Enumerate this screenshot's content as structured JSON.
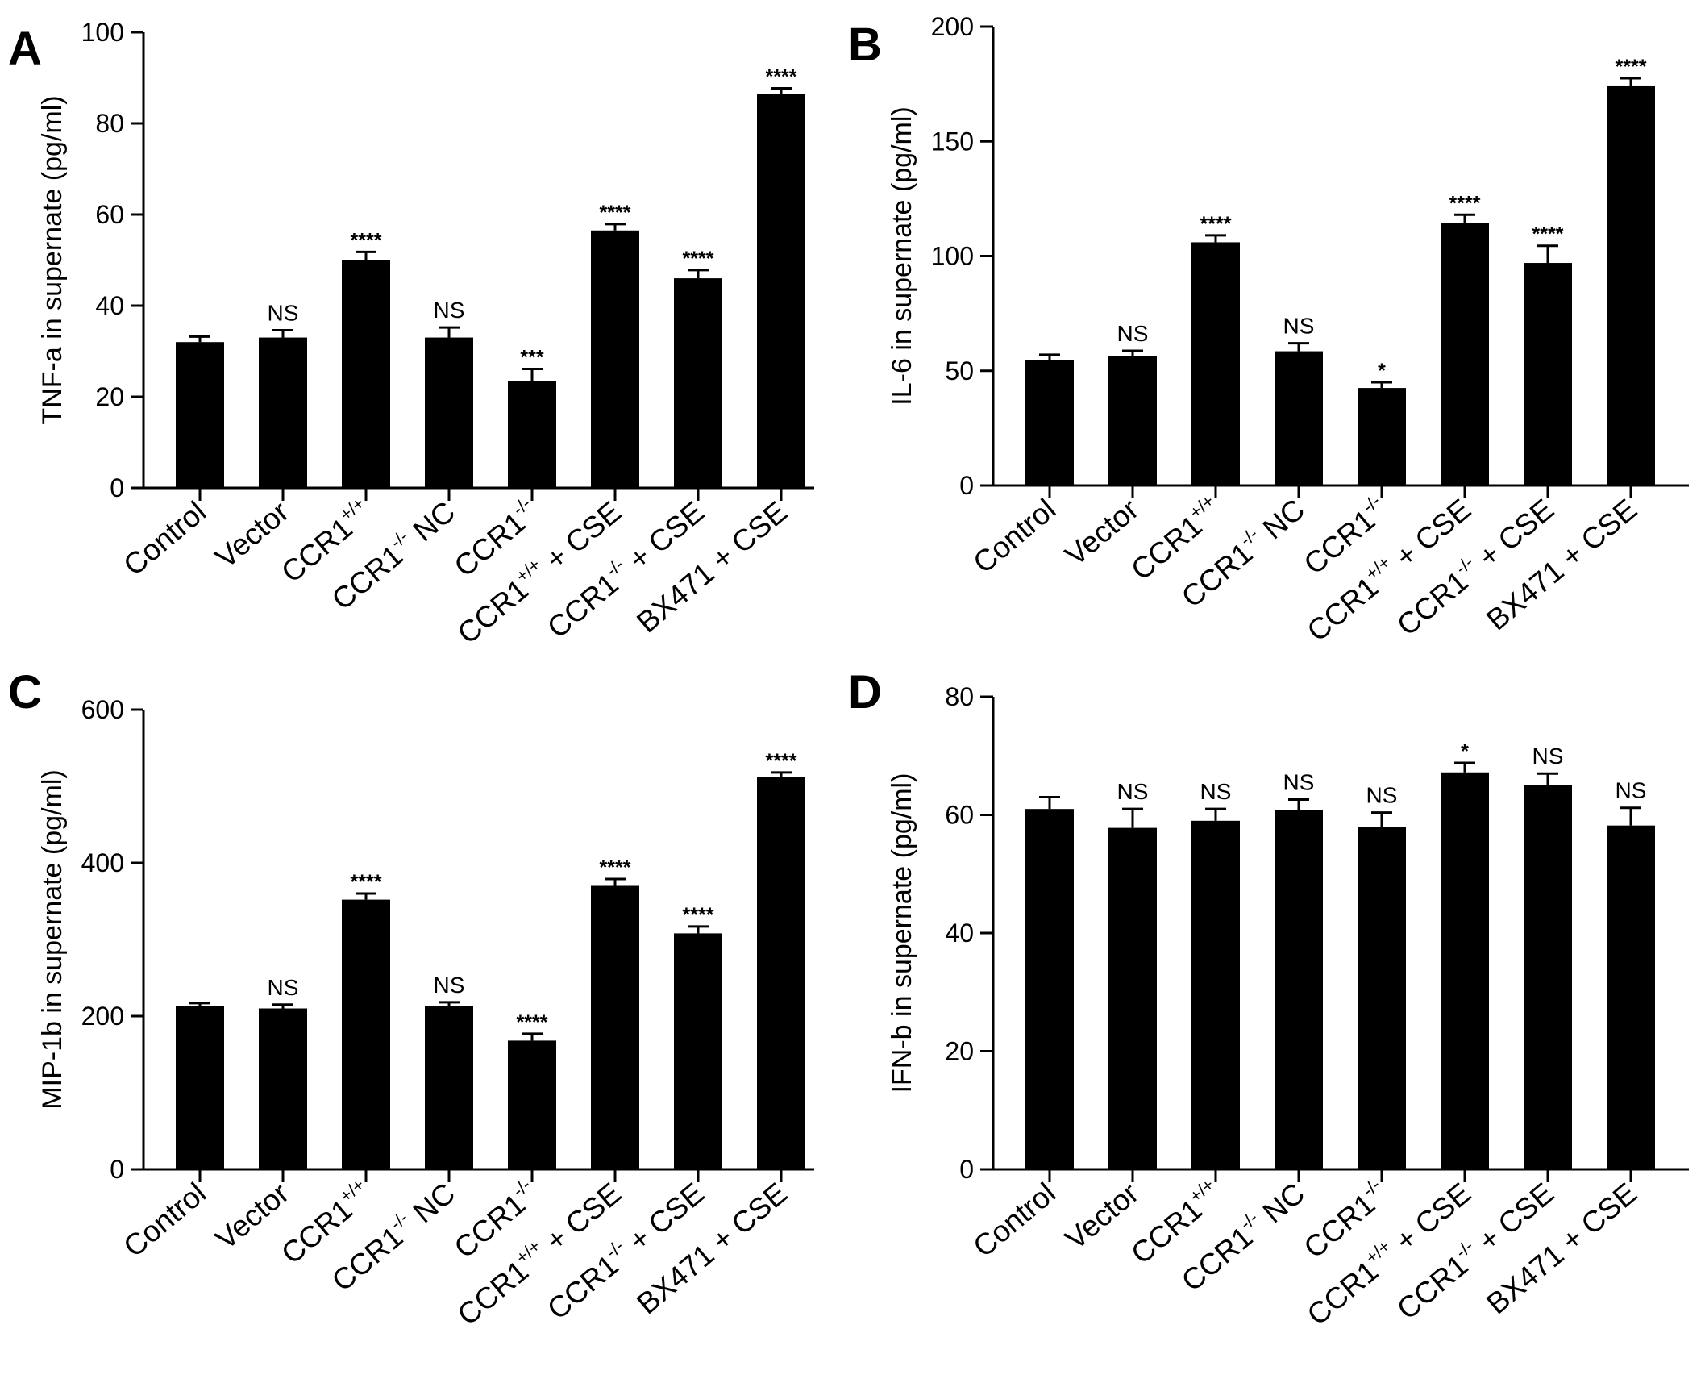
{
  "chart_data": [
    {
      "type": "bar",
      "panel": "A",
      "ylabel": "TNF-a in supernate (pg/ml)",
      "ylim": [
        0,
        100
      ],
      "yticks": [
        0,
        20,
        40,
        60,
        80,
        100
      ],
      "categories": [
        {
          "main": "Control",
          "sup": "",
          "tail": ""
        },
        {
          "main": "Vector",
          "sup": "",
          "tail": ""
        },
        {
          "main": "CCR1",
          "sup": "+/+",
          "tail": ""
        },
        {
          "main": "CCR1",
          "sup": "-/-",
          "tail": " NC"
        },
        {
          "main": "CCR1",
          "sup": "-/-",
          "tail": ""
        },
        {
          "main": "CCR1",
          "sup": "+/+",
          "tail": " + CSE"
        },
        {
          "main": "CCR1",
          "sup": "-/-",
          "tail": " + CSE"
        },
        {
          "main": "BX471 + CSE",
          "sup": "",
          "tail": ""
        }
      ],
      "values": [
        32,
        33,
        50,
        33,
        23.5,
        56.5,
        46,
        86.5
      ],
      "errors": [
        1.2,
        1.6,
        1.8,
        2.2,
        2.6,
        1.4,
        1.8,
        1.2
      ],
      "significance": [
        "",
        "NS",
        "****",
        "NS",
        "***",
        "****",
        "****",
        "****"
      ],
      "color": "#000000"
    },
    {
      "type": "bar",
      "panel": "B",
      "ylabel": "IL-6 in supernate (pg/ml)",
      "ylim": [
        0,
        200
      ],
      "yticks": [
        0,
        50,
        100,
        150,
        200
      ],
      "categories": [
        {
          "main": "Control",
          "sup": "",
          "tail": ""
        },
        {
          "main": "Vector",
          "sup": "",
          "tail": ""
        },
        {
          "main": "CCR1",
          "sup": "+/+",
          "tail": ""
        },
        {
          "main": "CCR1",
          "sup": "-/-",
          "tail": " NC"
        },
        {
          "main": "CCR1",
          "sup": "-/-",
          "tail": ""
        },
        {
          "main": "CCR1",
          "sup": "+/+",
          "tail": " + CSE"
        },
        {
          "main": "CCR1",
          "sup": "-/-",
          "tail": " + CSE"
        },
        {
          "main": "BX471 + CSE",
          "sup": "",
          "tail": ""
        }
      ],
      "values": [
        54.5,
        56.5,
        106,
        58.5,
        42.5,
        114.5,
        97,
        174
      ],
      "errors": [
        2.5,
        2.2,
        3,
        3.5,
        2.5,
        3.5,
        7.5,
        3.5
      ],
      "significance": [
        "",
        "NS",
        "****",
        "NS",
        "*",
        "****",
        "****",
        "****"
      ],
      "color": "#000000"
    },
    {
      "type": "bar",
      "panel": "C",
      "ylabel": "MIP-1b in supernate (pg/ml)",
      "ylim": [
        0,
        600
      ],
      "yticks": [
        0,
        200,
        400,
        600
      ],
      "categories": [
        {
          "main": "Control",
          "sup": "",
          "tail": ""
        },
        {
          "main": "Vector",
          "sup": "",
          "tail": ""
        },
        {
          "main": "CCR1",
          "sup": "+/+",
          "tail": ""
        },
        {
          "main": "CCR1",
          "sup": "-/-",
          "tail": " NC"
        },
        {
          "main": "CCR1",
          "sup": "-/-",
          "tail": ""
        },
        {
          "main": "CCR1",
          "sup": "+/+",
          "tail": " + CSE"
        },
        {
          "main": "CCR1",
          "sup": "-/-",
          "tail": " + CSE"
        },
        {
          "main": "BX471 + CSE",
          "sup": "",
          "tail": ""
        }
      ],
      "values": [
        213,
        210,
        352,
        213,
        168,
        370,
        308,
        512
      ],
      "errors": [
        4,
        5,
        8,
        5,
        9,
        9,
        9,
        6
      ],
      "significance": [
        "",
        "NS",
        "****",
        "NS",
        "****",
        "****",
        "****",
        "****"
      ],
      "color": "#000000"
    },
    {
      "type": "bar",
      "panel": "D",
      "ylabel": "IFN-b in supernate (pg/ml)",
      "ylim": [
        0,
        80
      ],
      "yticks": [
        0,
        20,
        40,
        60,
        80
      ],
      "categories": [
        {
          "main": "Control",
          "sup": "",
          "tail": ""
        },
        {
          "main": "Vector",
          "sup": "",
          "tail": ""
        },
        {
          "main": "CCR1",
          "sup": "+/+",
          "tail": ""
        },
        {
          "main": "CCR1",
          "sup": "-/-",
          "tail": " NC"
        },
        {
          "main": "CCR1",
          "sup": "-/-",
          "tail": ""
        },
        {
          "main": "CCR1",
          "sup": "+/+",
          "tail": " + CSE"
        },
        {
          "main": "CCR1",
          "sup": "-/-",
          "tail": " + CSE"
        },
        {
          "main": "BX471 + CSE",
          "sup": "",
          "tail": ""
        }
      ],
      "values": [
        61,
        57.8,
        59,
        60.8,
        58,
        67.2,
        65,
        58.2
      ],
      "errors": [
        2,
        3.2,
        2,
        1.8,
        2.4,
        1.6,
        2,
        3
      ],
      "significance": [
        "",
        "NS",
        "NS",
        "NS",
        "NS",
        "*",
        "NS",
        "NS"
      ],
      "color": "#000000"
    }
  ]
}
